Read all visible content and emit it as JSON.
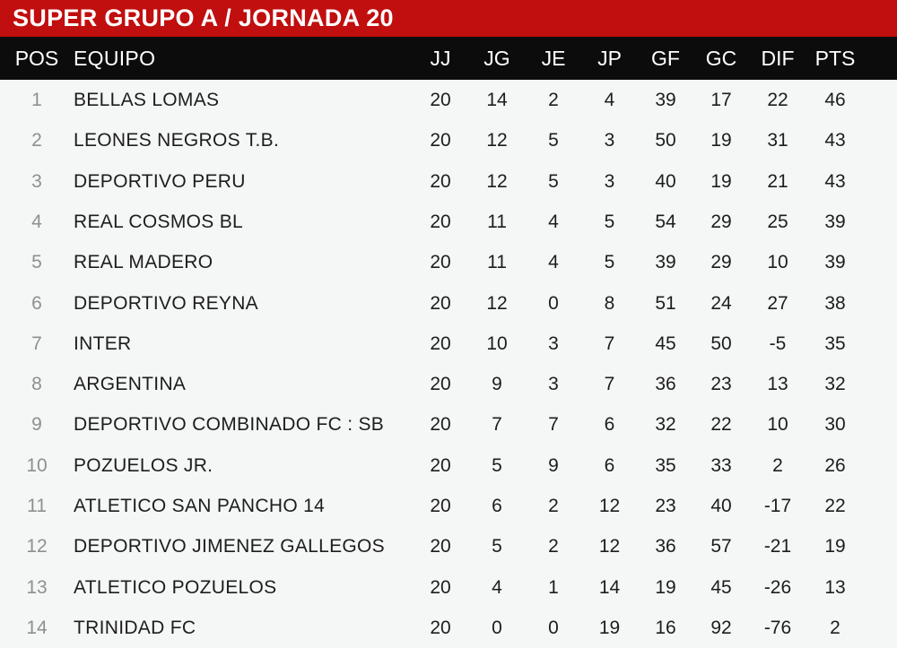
{
  "title_bar": {
    "title": "SUPER GRUPO A / JORNADA 20"
  },
  "chart_data": {
    "type": "table",
    "title": "SUPER GRUPO A / JORNADA 20",
    "columns": [
      "POS",
      "EQUIPO",
      "JJ",
      "JG",
      "JE",
      "JP",
      "GF",
      "GC",
      "DIF",
      "PTS"
    ],
    "rows": [
      [
        1,
        "BELLAS LOMAS",
        20,
        14,
        2,
        4,
        39,
        17,
        22,
        46
      ],
      [
        2,
        "LEONES NEGROS T.B.",
        20,
        12,
        5,
        3,
        50,
        19,
        31,
        43
      ],
      [
        3,
        "DEPORTIVO PERU",
        20,
        12,
        5,
        3,
        40,
        19,
        21,
        43
      ],
      [
        4,
        "REAL COSMOS BL",
        20,
        11,
        4,
        5,
        54,
        29,
        25,
        39
      ],
      [
        5,
        "REAL MADERO",
        20,
        11,
        4,
        5,
        39,
        29,
        10,
        39
      ],
      [
        6,
        "DEPORTIVO REYNA",
        20,
        12,
        0,
        8,
        51,
        24,
        27,
        38
      ],
      [
        7,
        "INTER",
        20,
        10,
        3,
        7,
        45,
        50,
        -5,
        35
      ],
      [
        8,
        "ARGENTINA",
        20,
        9,
        3,
        7,
        36,
        23,
        13,
        32
      ],
      [
        9,
        "DEPORTIVO COMBINADO FC : SB",
        20,
        7,
        7,
        6,
        32,
        22,
        10,
        30
      ],
      [
        10,
        "POZUELOS JR.",
        20,
        5,
        9,
        6,
        35,
        33,
        2,
        26
      ],
      [
        11,
        "ATLETICO SAN PANCHO 14",
        20,
        6,
        2,
        12,
        23,
        40,
        -17,
        22
      ],
      [
        12,
        "DEPORTIVO JIMENEZ GALLEGOS",
        20,
        5,
        2,
        12,
        36,
        57,
        -21,
        19
      ],
      [
        13,
        "ATLETICO POZUELOS",
        20,
        4,
        1,
        14,
        19,
        45,
        -26,
        13
      ],
      [
        14,
        "TRINIDAD FC",
        20,
        0,
        0,
        19,
        16,
        92,
        -76,
        2
      ]
    ]
  },
  "colors": {
    "accent_red": "#c10e0e",
    "header_black": "#0c0c0c",
    "body_bg": "#f5f6f6",
    "pos_gray": "#8f8f8f",
    "text_dark": "#1d1d1d",
    "text_white": "#ffffff"
  }
}
